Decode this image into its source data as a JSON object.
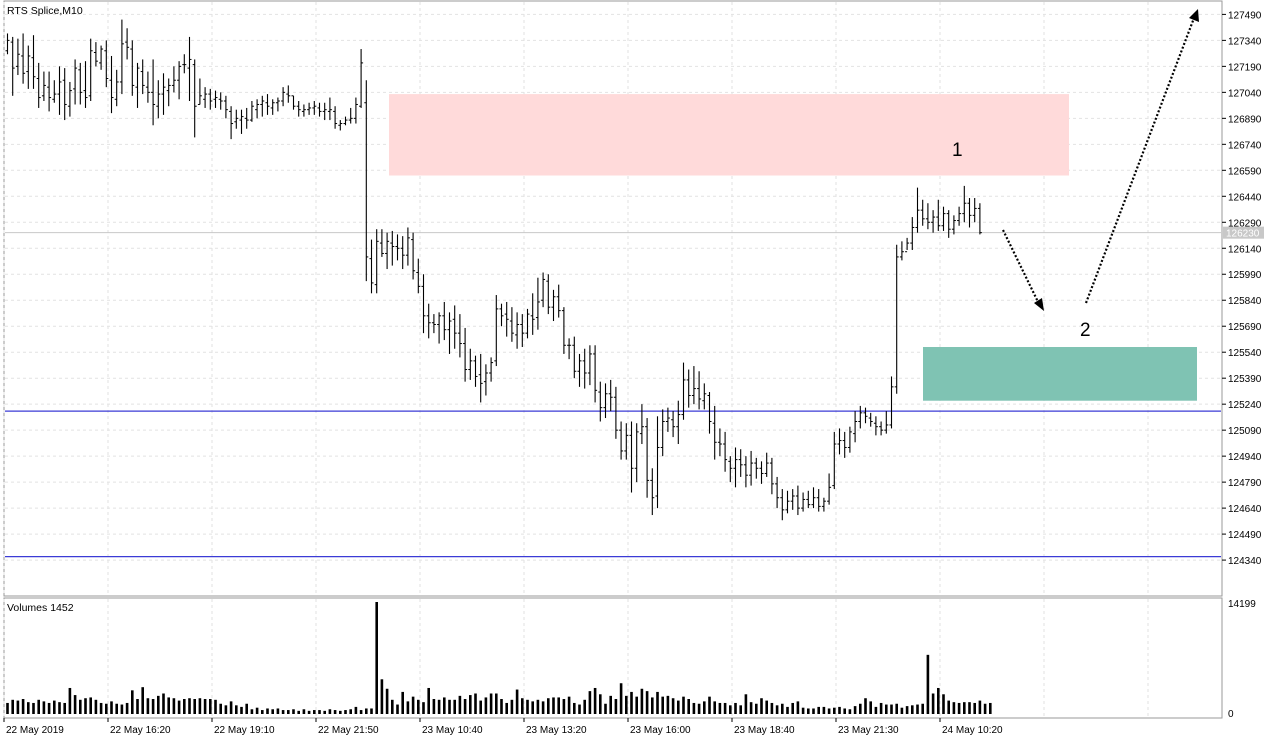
{
  "window": {
    "symbol_label": "RTS Splice,M10",
    "volumes_label": "Volumes 1452"
  },
  "price_axis": {
    "ticks": [
      127490,
      127340,
      127190,
      127040,
      126890,
      126740,
      126590,
      126440,
      126290,
      126140,
      125990,
      125840,
      125690,
      125540,
      125390,
      125240,
      125090,
      124940,
      124790,
      124640,
      124490,
      124340
    ],
    "current_price": 126230
  },
  "volume_axis": {
    "max_label": "14199",
    "min_label": "0",
    "max": 14199
  },
  "time_axis": {
    "labels": [
      "22 May 2019",
      "22 May 16:20",
      "22 May 19:10",
      "22 May 21:50",
      "23 May 10:40",
      "23 May 13:20",
      "23 May 16:00",
      "23 May 18:40",
      "23 May 21:30",
      "24 May 10:20"
    ]
  },
  "annotations": {
    "marker_1": "1",
    "marker_2": "2"
  },
  "zones": {
    "resistance_color": "#ffdada",
    "support_color": "#7fc3b3",
    "resistance": {
      "from_price": 126560,
      "to_price": 127030
    },
    "support": {
      "from_price": 125260,
      "to_price": 125570
    }
  },
  "levels": {
    "color": "#3b3bd6",
    "prices": [
      125200,
      124360
    ]
  },
  "chart_data": {
    "type": "bar",
    "series_kind": "ohlc",
    "title": "RTS Splice,M10",
    "y_range": [
      124150,
      127550
    ],
    "volume_max": 14199,
    "bars": [
      [
        127280,
        127380,
        127260,
        127340
      ],
      [
        127330,
        127360,
        127020,
        127180
      ],
      [
        127190,
        127350,
        127140,
        127260
      ],
      [
        127250,
        127380,
        127090,
        127150
      ],
      [
        127160,
        127310,
        127060,
        127250
      ],
      [
        127240,
        127370,
        127060,
        127130
      ],
      [
        127120,
        127210,
        126950,
        127010
      ],
      [
        127020,
        127160,
        126990,
        127080
      ],
      [
        127070,
        127160,
        126930,
        127010
      ],
      [
        127000,
        127110,
        126980,
        127030
      ],
      [
        127030,
        127190,
        126910,
        127100
      ],
      [
        127110,
        127180,
        126880,
        126970
      ],
      [
        126960,
        127100,
        126900,
        127050
      ],
      [
        127060,
        127230,
        126970,
        127180
      ],
      [
        127170,
        127210,
        126970,
        127040
      ],
      [
        127050,
        127220,
        126950,
        127010
      ],
      [
        127020,
        127350,
        126990,
        127280
      ],
      [
        127270,
        127330,
        127190,
        127220
      ],
      [
        127210,
        127310,
        127170,
        127290
      ],
      [
        127280,
        127340,
        127070,
        127120
      ],
      [
        127110,
        127250,
        126920,
        127010
      ],
      [
        127000,
        127170,
        126960,
        127100
      ],
      [
        127100,
        127460,
        127030,
        127320
      ],
      [
        127330,
        127410,
        127230,
        127300
      ],
      [
        127290,
        127340,
        127020,
        127080
      ],
      [
        127070,
        127210,
        126950,
        127180
      ],
      [
        127160,
        127230,
        127030,
        127080
      ],
      [
        127070,
        127160,
        126980,
        127040
      ],
      [
        127040,
        127230,
        126850,
        126970
      ],
      [
        126960,
        127110,
        126890,
        127030
      ],
      [
        127030,
        127150,
        126910,
        127070
      ],
      [
        127050,
        127120,
        126960,
        127080
      ],
      [
        127080,
        127190,
        127040,
        127110
      ],
      [
        127110,
        127220,
        127000,
        127190
      ],
      [
        127200,
        127260,
        127150,
        127200
      ],
      [
        127180,
        127360,
        126990,
        127230
      ],
      [
        127200,
        127230,
        126780,
        126960
      ],
      [
        126970,
        127120,
        126970,
        127020
      ],
      [
        127000,
        127070,
        126950,
        127030
      ],
      [
        127030,
        127060,
        126940,
        126990
      ],
      [
        127000,
        127050,
        126950,
        127010
      ],
      [
        127000,
        127040,
        126940,
        126990
      ],
      [
        126990,
        127020,
        126890,
        126940
      ],
      [
        126930,
        126960,
        126770,
        126860
      ],
      [
        126870,
        126940,
        126830,
        126890
      ],
      [
        126880,
        126940,
        126800,
        126900
      ],
      [
        126890,
        126950,
        126830,
        126880
      ],
      [
        126880,
        126990,
        126870,
        126960
      ],
      [
        126940,
        127000,
        126890,
        126970
      ],
      [
        126970,
        127020,
        126900,
        126990
      ],
      [
        126980,
        127030,
        126910,
        126960
      ],
      [
        126950,
        127000,
        126910,
        126980
      ],
      [
        126980,
        127010,
        126930,
        126990
      ],
      [
        126990,
        127070,
        126960,
        127040
      ],
      [
        127030,
        127080,
        126980,
        127020
      ],
      [
        127020,
        127020,
        126940,
        126960
      ],
      [
        126960,
        126990,
        126900,
        126940
      ],
      [
        126930,
        126970,
        126900,
        126940
      ],
      [
        126940,
        126980,
        126910,
        126950
      ],
      [
        126950,
        126990,
        126910,
        126960
      ],
      [
        126950,
        126980,
        126900,
        126930
      ],
      [
        126930,
        126980,
        126880,
        126940
      ],
      [
        126930,
        127010,
        126880,
        126940
      ],
      [
        126930,
        126960,
        126830,
        126860
      ],
      [
        126850,
        126880,
        126820,
        126860
      ],
      [
        126860,
        126900,
        126850,
        126880
      ],
      [
        126880,
        126950,
        126860,
        126890
      ],
      [
        126890,
        127010,
        126860,
        126970
      ],
      [
        126960,
        127290,
        126950,
        127210
      ],
      [
        126980,
        127110,
        125950,
        126090
      ],
      [
        126080,
        126190,
        125880,
        125940
      ],
      [
        125930,
        126250,
        125880,
        126180
      ],
      [
        126170,
        126250,
        126090,
        126110
      ],
      [
        126110,
        126230,
        126020,
        126180
      ],
      [
        126170,
        126240,
        126040,
        126150
      ],
      [
        126150,
        126220,
        126070,
        126140
      ],
      [
        126140,
        126210,
        126020,
        126100
      ],
      [
        126100,
        126260,
        126040,
        126200
      ],
      [
        126190,
        126230,
        125960,
        126010
      ],
      [
        126000,
        126080,
        125880,
        125920
      ],
      [
        125920,
        125990,
        125650,
        125750
      ],
      [
        125750,
        125820,
        125620,
        125710
      ],
      [
        125710,
        125760,
        125650,
        125700
      ],
      [
        125700,
        125770,
        125590,
        125750
      ],
      [
        125750,
        125830,
        125610,
        125670
      ],
      [
        125670,
        125770,
        125530,
        125720
      ],
      [
        125730,
        125810,
        125560,
        125650
      ],
      [
        125650,
        125760,
        125510,
        125590
      ],
      [
        125590,
        125680,
        125370,
        125440
      ],
      [
        125440,
        125560,
        125380,
        125490
      ],
      [
        125490,
        125520,
        125340,
        125400
      ],
      [
        125410,
        125530,
        125250,
        125360
      ],
      [
        125370,
        125470,
        125290,
        125420
      ],
      [
        125420,
        125510,
        125370,
        125480
      ],
      [
        125490,
        125870,
        125460,
        125790
      ],
      [
        125790,
        125820,
        125690,
        125750
      ],
      [
        125760,
        125830,
        125630,
        125730
      ],
      [
        125720,
        125800,
        125600,
        125650
      ],
      [
        125640,
        125770,
        125560,
        125700
      ],
      [
        125700,
        125760,
        125570,
        125650
      ],
      [
        125650,
        125790,
        125620,
        125760
      ],
      [
        125750,
        125880,
        125640,
        125730
      ],
      [
        125740,
        125970,
        125670,
        125830
      ],
      [
        125840,
        126000,
        125800,
        125960
      ],
      [
        125950,
        125990,
        125760,
        125800
      ],
      [
        125800,
        125900,
        125720,
        125860
      ],
      [
        125860,
        125930,
        125740,
        125780
      ],
      [
        125780,
        125800,
        125530,
        125580
      ],
      [
        125580,
        125620,
        125500,
        125580
      ],
      [
        125580,
        125630,
        125390,
        125430
      ],
      [
        125430,
        125530,
        125340,
        125490
      ],
      [
        125490,
        125560,
        125330,
        125420
      ],
      [
        125420,
        125580,
        125350,
        125530
      ],
      [
        125530,
        125580,
        125250,
        125320
      ],
      [
        125310,
        125370,
        125140,
        125220
      ],
      [
        125220,
        125360,
        125160,
        125300
      ],
      [
        125300,
        125380,
        125200,
        125280
      ],
      [
        125280,
        125340,
        125040,
        125090
      ],
      [
        125090,
        125140,
        124920,
        124970
      ],
      [
        124970,
        125130,
        124920,
        125060
      ],
      [
        125060,
        125140,
        124730,
        124870
      ],
      [
        124870,
        125130,
        124790,
        125080
      ],
      [
        125070,
        125240,
        125010,
        125110
      ],
      [
        125110,
        125160,
        124700,
        124800
      ],
      [
        124800,
        124870,
        124600,
        124700
      ],
      [
        124710,
        125170,
        124640,
        124990
      ],
      [
        124990,
        125210,
        124940,
        125140
      ],
      [
        125140,
        125220,
        125080,
        125160
      ],
      [
        125150,
        125200,
        125050,
        125110
      ],
      [
        125110,
        125260,
        125010,
        125180
      ],
      [
        125180,
        125480,
        125150,
        125380
      ],
      [
        125380,
        125440,
        125220,
        125290
      ],
      [
        125290,
        125460,
        125240,
        125330
      ],
      [
        125330,
        125430,
        125210,
        125270
      ],
      [
        125260,
        125360,
        125210,
        125300
      ],
      [
        125290,
        125310,
        125070,
        125140
      ],
      [
        125130,
        125230,
        124920,
        125020
      ],
      [
        125020,
        125100,
        124940,
        125010
      ],
      [
        125010,
        125080,
        124850,
        124920
      ],
      [
        124910,
        124940,
        124790,
        124870
      ],
      [
        124870,
        124990,
        124760,
        124920
      ],
      [
        124920,
        124980,
        124820,
        124890
      ],
      [
        124890,
        124940,
        124760,
        124830
      ],
      [
        124830,
        124970,
        124770,
        124900
      ],
      [
        124900,
        124930,
        124810,
        124870
      ],
      [
        124870,
        124910,
        124780,
        124840
      ],
      [
        124840,
        124960,
        124820,
        124900
      ],
      [
        124900,
        124930,
        124720,
        124780
      ],
      [
        124780,
        124820,
        124640,
        124700
      ],
      [
        124700,
        124750,
        124570,
        124630
      ],
      [
        124630,
        124740,
        124610,
        124680
      ],
      [
        124680,
        124750,
        124630,
        124710
      ],
      [
        124710,
        124770,
        124600,
        124640
      ],
      [
        124640,
        124730,
        124620,
        124690
      ],
      [
        124690,
        124740,
        124640,
        124660
      ],
      [
        124660,
        124760,
        124640,
        124700
      ],
      [
        124700,
        124750,
        124620,
        124650
      ],
      [
        124650,
        124700,
        124620,
        124680
      ],
      [
        124680,
        124840,
        124660,
        124760
      ],
      [
        124770,
        125080,
        124750,
        125010
      ],
      [
        125010,
        125100,
        124950,
        125030
      ],
      [
        125030,
        125080,
        124930,
        124990
      ],
      [
        124990,
        125110,
        124960,
        125080
      ],
      [
        125070,
        125200,
        125020,
        125140
      ],
      [
        125140,
        125230,
        125100,
        125190
      ],
      [
        125190,
        125220,
        125130,
        125170
      ],
      [
        125160,
        125190,
        125110,
        125140
      ],
      [
        125130,
        125170,
        125060,
        125110
      ],
      [
        125110,
        125140,
        125060,
        125090
      ],
      [
        125090,
        125200,
        125070,
        125120
      ],
      [
        125120,
        125400,
        125100,
        125340
      ],
      [
        125340,
        126160,
        125300,
        126090
      ],
      [
        126090,
        126180,
        126070,
        126120
      ],
      [
        126120,
        126200,
        126130,
        126170
      ],
      [
        126170,
        126320,
        126130,
        126260
      ],
      [
        126260,
        126490,
        126230,
        126360
      ],
      [
        126360,
        126420,
        126270,
        126310
      ],
      [
        126310,
        126400,
        126250,
        126290
      ],
      [
        126290,
        126360,
        126230,
        126320
      ],
      [
        126320,
        126420,
        126240,
        126270
      ],
      [
        126270,
        126380,
        126240,
        126340
      ],
      [
        126340,
        126360,
        126200,
        126250
      ],
      [
        126250,
        126330,
        126220,
        126300
      ],
      [
        126300,
        126380,
        126270,
        126340
      ],
      [
        126340,
        126500,
        126290,
        126400
      ],
      [
        126400,
        126430,
        126260,
        126330
      ],
      [
        126330,
        126430,
        126290,
        126370
      ],
      [
        126370,
        126400,
        126220,
        126230
      ]
    ],
    "volumes": [
      1400,
      1800,
      1700,
      1900,
      1500,
      1400,
      1800,
      1600,
      1400,
      1700,
      1500,
      1400,
      3300,
      2400,
      1800,
      2000,
      2100,
      1800,
      1400,
      1300,
      1600,
      1300,
      1200,
      1400,
      3000,
      1900,
      3400,
      2000,
      1900,
      2300,
      2600,
      2100,
      2000,
      1700,
      1900,
      2000,
      1900,
      2000,
      1900,
      1900,
      1800,
      1300,
      1100,
      1600,
      1100,
      900,
      1300,
      600,
      800,
      500,
      700,
      600,
      700,
      500,
      500,
      600,
      400,
      600,
      400,
      500,
      500,
      400,
      600,
      500,
      400,
      500,
      600,
      900,
      500,
      700,
      700,
      14199,
      4400,
      3200,
      1800,
      1200,
      2800,
      1600,
      2200,
      1800,
      1500,
      3300,
      1900,
      1800,
      2100,
      1800,
      1800,
      2300,
      1900,
      2400,
      2600,
      1700,
      2100,
      2600,
      2600,
      1900,
      1400,
      1800,
      3100,
      2000,
      1800,
      1600,
      1800,
      1600,
      2000,
      2100,
      2100,
      1900,
      2200,
      1400,
      1200,
      1800,
      2900,
      3300,
      2500,
      1300,
      2300,
      1900,
      3900,
      2300,
      2800,
      2200,
      3200,
      2900,
      2100,
      2800,
      2200,
      2300,
      2000,
      1700,
      2200,
      1900,
      1400,
      1300,
      1600,
      2200,
      1600,
      1400,
      1400,
      1100,
      1400,
      1100,
      2500,
      1500,
      1300,
      2000,
      1700,
      1400,
      1100,
      1300,
      900,
      1400,
      1600,
      800,
      700,
      700,
      900,
      900,
      700,
      800,
      900,
      700,
      600,
      1000,
      1300,
      2000,
      1600,
      900,
      1400,
      1200,
      1200,
      1300,
      800,
      1000,
      1100,
      1200,
      1300,
      7500,
      2600,
      3300,
      2500,
      1700,
      1500,
      1400,
      1500,
      1500,
      1400,
      1700,
      1300,
      1400
    ]
  }
}
